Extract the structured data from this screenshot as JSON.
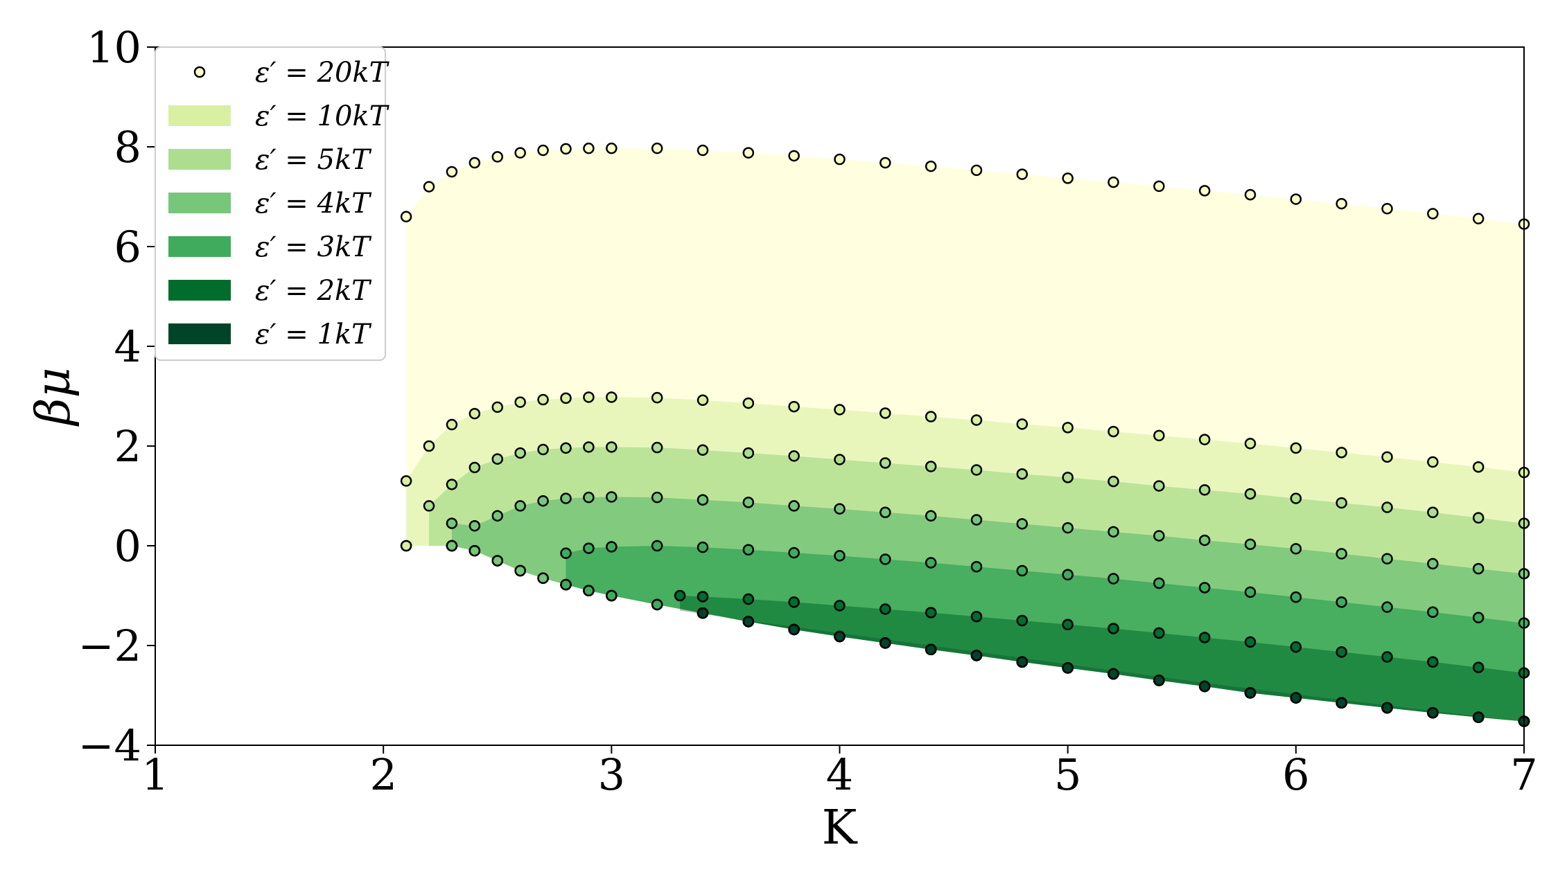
{
  "chart_data": {
    "type": "area",
    "xlabel": "K",
    "ylabel": "βμ",
    "xlim": [
      1,
      7
    ],
    "ylim": [
      -4,
      10
    ],
    "xticks": [
      "1",
      "2",
      "3",
      "4",
      "5",
      "6",
      "7"
    ],
    "yticks": [
      "−4",
      "−2",
      "0",
      "2",
      "4",
      "6",
      "8",
      "10"
    ],
    "grid": false,
    "legend_position": "top-left",
    "legend_entries": [
      {
        "label": "ε′ = 20kT",
        "marker": "circle",
        "color": "#ffffcc"
      },
      {
        "label": "ε′ = 10kT",
        "marker": "patch",
        "color": "#d9f0a3"
      },
      {
        "label": "ε′ = 5kT",
        "marker": "patch",
        "color": "#addd8e"
      },
      {
        "label": "ε′ = 4kT",
        "marker": "patch",
        "color": "#78c679"
      },
      {
        "label": "ε′ = 3kT",
        "marker": "patch",
        "color": "#41ab5d"
      },
      {
        "label": "ε′ = 2kT",
        "marker": "patch",
        "color": "#006d2c"
      },
      {
        "label": "ε′ = 1kT",
        "marker": "patch",
        "color": "#004529"
      }
    ],
    "series": [
      {
        "name": "ε′ = 20kT",
        "fill": "#ffffcc",
        "opacity": 0.6,
        "x_start": 2.1,
        "upper_left": 6.6,
        "upper": [
          [
            2.1,
            6.6
          ],
          [
            2.2,
            7.2
          ],
          [
            2.3,
            7.5
          ],
          [
            2.4,
            7.68
          ],
          [
            2.5,
            7.8
          ],
          [
            2.6,
            7.88
          ],
          [
            2.7,
            7.93
          ],
          [
            2.8,
            7.96
          ],
          [
            2.9,
            7.97
          ],
          [
            3.0,
            7.97
          ],
          [
            3.2,
            7.97
          ],
          [
            3.4,
            7.93
          ],
          [
            3.6,
            7.88
          ],
          [
            3.8,
            7.82
          ],
          [
            4.0,
            7.75
          ],
          [
            4.2,
            7.68
          ],
          [
            4.4,
            7.61
          ],
          [
            4.6,
            7.53
          ],
          [
            4.8,
            7.45
          ],
          [
            5.0,
            7.37
          ],
          [
            5.2,
            7.29
          ],
          [
            5.4,
            7.21
          ],
          [
            5.6,
            7.12
          ],
          [
            5.8,
            7.04
          ],
          [
            6.0,
            6.95
          ],
          [
            6.2,
            6.86
          ],
          [
            6.4,
            6.76
          ],
          [
            6.6,
            6.66
          ],
          [
            6.8,
            6.56
          ],
          [
            7.0,
            6.45
          ]
        ]
      },
      {
        "name": "ε′ = 10kT",
        "fill": "#d9f0a3",
        "opacity": 0.6,
        "x_start": 2.1,
        "upper_left": 1.3,
        "upper": [
          [
            2.1,
            1.3
          ],
          [
            2.2,
            2.0
          ],
          [
            2.3,
            2.43
          ],
          [
            2.4,
            2.65
          ],
          [
            2.5,
            2.78
          ],
          [
            2.6,
            2.88
          ],
          [
            2.7,
            2.93
          ],
          [
            2.8,
            2.96
          ],
          [
            2.9,
            2.98
          ],
          [
            3.0,
            2.98
          ],
          [
            3.2,
            2.97
          ],
          [
            3.4,
            2.92
          ],
          [
            3.6,
            2.86
          ],
          [
            3.8,
            2.79
          ],
          [
            4.0,
            2.73
          ],
          [
            4.2,
            2.66
          ],
          [
            4.4,
            2.59
          ],
          [
            4.6,
            2.52
          ],
          [
            4.8,
            2.44
          ],
          [
            5.0,
            2.37
          ],
          [
            5.2,
            2.29
          ],
          [
            5.4,
            2.21
          ],
          [
            5.6,
            2.13
          ],
          [
            5.8,
            2.05
          ],
          [
            6.0,
            1.96
          ],
          [
            6.2,
            1.87
          ],
          [
            6.4,
            1.78
          ],
          [
            6.6,
            1.68
          ],
          [
            6.8,
            1.58
          ],
          [
            7.0,
            1.47
          ]
        ]
      },
      {
        "name": "ε′ = 5kT",
        "fill": "#addd8e",
        "opacity": 0.75,
        "x_start": 2.2,
        "upper_left": 0.8,
        "upper": [
          [
            2.2,
            0.8
          ],
          [
            2.3,
            1.23
          ],
          [
            2.4,
            1.57
          ],
          [
            2.5,
            1.74
          ],
          [
            2.6,
            1.86
          ],
          [
            2.7,
            1.93
          ],
          [
            2.8,
            1.96
          ],
          [
            2.9,
            1.98
          ],
          [
            3.0,
            1.98
          ],
          [
            3.2,
            1.97
          ],
          [
            3.4,
            1.92
          ],
          [
            3.6,
            1.86
          ],
          [
            3.8,
            1.8
          ],
          [
            4.0,
            1.73
          ],
          [
            4.2,
            1.66
          ],
          [
            4.4,
            1.59
          ],
          [
            4.6,
            1.52
          ],
          [
            4.8,
            1.44
          ],
          [
            5.0,
            1.37
          ],
          [
            5.2,
            1.29
          ],
          [
            5.4,
            1.2
          ],
          [
            5.6,
            1.12
          ],
          [
            5.8,
            1.04
          ],
          [
            6.0,
            0.95
          ],
          [
            6.2,
            0.86
          ],
          [
            6.4,
            0.77
          ],
          [
            6.6,
            0.67
          ],
          [
            6.8,
            0.56
          ],
          [
            7.0,
            0.45
          ]
        ]
      },
      {
        "name": "ε′ = 4kT",
        "fill": "#78c679",
        "opacity": 0.85,
        "x_start": 2.3,
        "upper_left": 0.45,
        "upper": [
          [
            2.3,
            0.45
          ],
          [
            2.4,
            0.4
          ],
          [
            2.5,
            0.6
          ],
          [
            2.6,
            0.8
          ],
          [
            2.7,
            0.9
          ],
          [
            2.8,
            0.95
          ],
          [
            2.9,
            0.97
          ],
          [
            3.0,
            0.98
          ],
          [
            3.2,
            0.97
          ],
          [
            3.4,
            0.92
          ],
          [
            3.6,
            0.87
          ],
          [
            3.8,
            0.8
          ],
          [
            4.0,
            0.74
          ],
          [
            4.2,
            0.67
          ],
          [
            4.4,
            0.6
          ],
          [
            4.6,
            0.52
          ],
          [
            4.8,
            0.44
          ],
          [
            5.0,
            0.36
          ],
          [
            5.2,
            0.28
          ],
          [
            5.4,
            0.2
          ],
          [
            5.6,
            0.11
          ],
          [
            5.8,
            0.03
          ],
          [
            6.0,
            -0.06
          ],
          [
            6.2,
            -0.16
          ],
          [
            6.4,
            -0.26
          ],
          [
            6.6,
            -0.36
          ],
          [
            6.8,
            -0.46
          ],
          [
            7.0,
            -0.56
          ]
        ]
      },
      {
        "name": "ε′ = 3kT",
        "fill": "#41ab5d",
        "opacity": 0.9,
        "x_start": 2.8,
        "upper_left": -0.15,
        "upper": [
          [
            2.8,
            -0.15
          ],
          [
            2.9,
            -0.05
          ],
          [
            3.0,
            -0.02
          ],
          [
            3.2,
            0.0
          ],
          [
            3.4,
            -0.03
          ],
          [
            3.6,
            -0.08
          ],
          [
            3.8,
            -0.14
          ],
          [
            4.0,
            -0.2
          ],
          [
            4.2,
            -0.27
          ],
          [
            4.4,
            -0.34
          ],
          [
            4.6,
            -0.42
          ],
          [
            4.8,
            -0.5
          ],
          [
            5.0,
            -0.58
          ],
          [
            5.2,
            -0.66
          ],
          [
            5.4,
            -0.75
          ],
          [
            5.6,
            -0.84
          ],
          [
            5.8,
            -0.93
          ],
          [
            6.0,
            -1.03
          ],
          [
            6.2,
            -1.13
          ],
          [
            6.4,
            -1.23
          ],
          [
            6.6,
            -1.33
          ],
          [
            6.8,
            -1.44
          ],
          [
            7.0,
            -1.55
          ]
        ]
      },
      {
        "name": "ε′ = 2kT",
        "fill": "#006d2c",
        "opacity": 0.55,
        "x_start": 3.3,
        "upper_left": -1.0,
        "upper": [
          [
            3.3,
            -1.0
          ],
          [
            3.4,
            -1.02
          ],
          [
            3.6,
            -1.07
          ],
          [
            3.8,
            -1.13
          ],
          [
            4.0,
            -1.2
          ],
          [
            4.2,
            -1.27
          ],
          [
            4.4,
            -1.34
          ],
          [
            4.6,
            -1.42
          ],
          [
            4.8,
            -1.5
          ],
          [
            5.0,
            -1.58
          ],
          [
            5.2,
            -1.66
          ],
          [
            5.4,
            -1.75
          ],
          [
            5.6,
            -1.84
          ],
          [
            5.8,
            -1.93
          ],
          [
            6.0,
            -2.03
          ],
          [
            6.2,
            -2.13
          ],
          [
            6.4,
            -2.23
          ],
          [
            6.6,
            -2.33
          ],
          [
            6.8,
            -2.44
          ],
          [
            7.0,
            -2.55
          ]
        ]
      },
      {
        "name": "ε′ = 1kT",
        "fill": "#004529",
        "opacity": 0.3,
        "x_start": 3.3,
        "upper_left": -1.3,
        "upper": [
          [
            3.3,
            -1.3
          ],
          [
            3.6,
            -1.5
          ],
          [
            4.0,
            -1.75
          ],
          [
            4.4,
            -2.0
          ],
          [
            4.8,
            -2.25
          ],
          [
            5.2,
            -2.5
          ],
          [
            5.6,
            -2.75
          ],
          [
            6.0,
            -2.98
          ],
          [
            6.4,
            -3.2
          ],
          [
            6.8,
            -3.42
          ],
          [
            7.0,
            -3.52
          ]
        ]
      }
    ],
    "lower_boundary": [
      [
        2.1,
        0.0
      ],
      [
        2.3,
        0.0
      ],
      [
        2.4,
        -0.1
      ],
      [
        2.5,
        -0.3
      ],
      [
        2.6,
        -0.5
      ],
      [
        2.7,
        -0.65
      ],
      [
        2.8,
        -0.78
      ],
      [
        2.9,
        -0.9
      ],
      [
        3.0,
        -1.0
      ],
      [
        3.2,
        -1.18
      ],
      [
        3.4,
        -1.35
      ],
      [
        3.6,
        -1.52
      ],
      [
        3.8,
        -1.68
      ],
      [
        4.0,
        -1.82
      ],
      [
        4.2,
        -1.95
      ],
      [
        4.4,
        -2.08
      ],
      [
        4.6,
        -2.2
      ],
      [
        4.8,
        -2.33
      ],
      [
        5.0,
        -2.45
      ],
      [
        5.2,
        -2.57
      ],
      [
        5.4,
        -2.7
      ],
      [
        5.6,
        -2.82
      ],
      [
        5.8,
        -2.95
      ],
      [
        6.0,
        -3.05
      ],
      [
        6.2,
        -3.15
      ],
      [
        6.4,
        -3.25
      ],
      [
        6.6,
        -3.35
      ],
      [
        6.8,
        -3.44
      ],
      [
        7.0,
        -3.52
      ]
    ],
    "marker_series": [
      {
        "name": "ε′ = 20kT",
        "color": "#ffffcc",
        "points": "upper",
        "of": "ε′ = 20kT"
      },
      {
        "name": "ε′ = 10kT",
        "color": "#d9f0a3",
        "points": "upper",
        "of": "ε′ = 10kT"
      },
      {
        "name": "ε′ = 5kT",
        "color": "#addd8e",
        "points": "upper",
        "of": "ε′ = 5kT"
      },
      {
        "name": "ε′ = 4kT",
        "color": "#78c679",
        "points": "upper",
        "of": "ε′ = 4kT"
      },
      {
        "name": "ε′ = 3kT",
        "color": "#41ab5d",
        "points": "upper",
        "of": "ε′ = 3kT"
      },
      {
        "name": "ε′ = 2kT",
        "color": "#006d2c",
        "points": "upper",
        "of": "ε′ = 2kT"
      },
      {
        "name": "ε′ = 1kT",
        "color": "#004529",
        "points": "lower",
        "of": "ε′ = 1kT"
      }
    ]
  }
}
